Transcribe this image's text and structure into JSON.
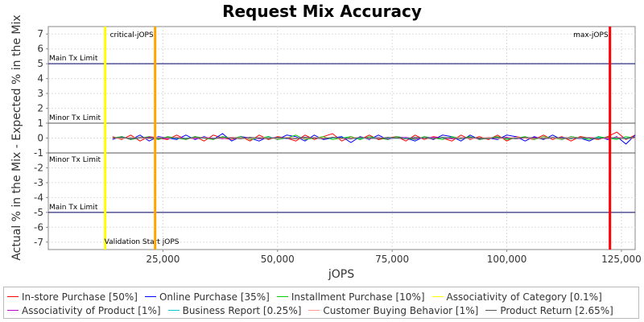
{
  "chart_data": {
    "type": "line",
    "title": "Request Mix Accuracy",
    "xlabel": "jOPS",
    "ylabel": "Actual % in the Mix - Expected % in the Mix",
    "xlim": [
      0,
      128000
    ],
    "ylim": [
      -7.5,
      7.5
    ],
    "x_ticks": [
      {
        "value": 25000,
        "label": "25,000"
      },
      {
        "value": 50000,
        "label": "50,000"
      },
      {
        "value": 75000,
        "label": "75,000"
      },
      {
        "value": 100000,
        "label": "100,000"
      },
      {
        "value": 125000,
        "label": "125,000"
      }
    ],
    "y_ticks": [
      {
        "value": 7,
        "label": "7"
      },
      {
        "value": 6,
        "label": "6"
      },
      {
        "value": 5,
        "label": "5"
      },
      {
        "value": 4,
        "label": "4"
      },
      {
        "value": 3,
        "label": "3"
      },
      {
        "value": 2,
        "label": "2"
      },
      {
        "value": 1,
        "label": "1"
      },
      {
        "value": 0,
        "label": "0"
      },
      {
        "value": -1,
        "label": "-1"
      },
      {
        "value": -2,
        "label": "-2"
      },
      {
        "value": -3,
        "label": "-3"
      },
      {
        "value": -4,
        "label": "-4"
      },
      {
        "value": -5,
        "label": "-5"
      },
      {
        "value": -6,
        "label": "-6"
      },
      {
        "value": -7,
        "label": "-7"
      }
    ],
    "grid": true,
    "legend_position": "bottom",
    "limit_lines": [
      {
        "label": "Main Tx Limit",
        "y": 5,
        "color": "#000066",
        "label_side": "above"
      },
      {
        "label": "Minor Tx Limit",
        "y": 1,
        "color": "#555555",
        "label_side": "above"
      },
      {
        "label": "Minor Tx Limit",
        "y": -1,
        "color": "#555555",
        "label_side": "below"
      },
      {
        "label": "Main Tx Limit",
        "y": -5,
        "color": "#000066",
        "label_side": "above"
      }
    ],
    "markers": [
      {
        "label": "Validation Start jOPS",
        "x": 12400,
        "color": "#ffff00",
        "label_pos": "bottom"
      },
      {
        "label": "critical-jOPS",
        "x": 23300,
        "color": "#ffa500",
        "label_pos": "top"
      },
      {
        "label": "max-jOPS",
        "x": 122500,
        "color": "#ff0000",
        "label_pos": "top"
      }
    ],
    "x": [
      14000,
      16000,
      18000,
      20000,
      22000,
      24000,
      26000,
      28000,
      30000,
      32000,
      34000,
      36000,
      38000,
      40000,
      42000,
      44000,
      46000,
      48000,
      50000,
      52000,
      54000,
      56000,
      58000,
      60000,
      62000,
      64000,
      66000,
      68000,
      70000,
      72000,
      74000,
      76000,
      78000,
      80000,
      82000,
      84000,
      86000,
      88000,
      90000,
      92000,
      94000,
      96000,
      98000,
      100000,
      102000,
      104000,
      106000,
      108000,
      110000,
      112000,
      114000,
      116000,
      118000,
      120000,
      122000,
      124000,
      126000,
      128000
    ],
    "series": [
      {
        "name": "In-store Purchase [50%]",
        "color": "#ff0000",
        "values": [
          0.1,
          -0.1,
          0.2,
          -0.2,
          0.1,
          0.0,
          -0.1,
          0.2,
          -0.1,
          0.1,
          -0.2,
          0.2,
          0.0,
          -0.1,
          0.1,
          -0.2,
          0.2,
          -0.1,
          0.1,
          0.0,
          -0.2,
          0.2,
          -0.1,
          0.1,
          0.3,
          -0.2,
          0.1,
          -0.1,
          0.2,
          -0.1,
          0.0,
          0.1,
          -0.2,
          0.2,
          -0.1,
          0.1,
          0.0,
          -0.2,
          0.2,
          -0.1,
          0.1,
          -0.1,
          0.2,
          -0.2,
          0.1,
          0.0,
          -0.1,
          0.2,
          -0.1,
          0.1,
          -0.2,
          0.1,
          0.0,
          -0.1,
          0.1,
          0.4,
          -0.1,
          0.2
        ]
      },
      {
        "name": "Online Purchase [35%]",
        "color": "#0000ff",
        "values": [
          -0.1,
          0.1,
          -0.1,
          0.2,
          -0.2,
          0.1,
          0.0,
          -0.1,
          0.2,
          -0.1,
          0.1,
          -0.1,
          0.3,
          -0.2,
          0.1,
          0.0,
          -0.2,
          0.1,
          -0.1,
          0.2,
          0.1,
          -0.2,
          0.2,
          -0.1,
          0.0,
          0.1,
          -0.3,
          0.1,
          -0.1,
          0.2,
          -0.1,
          0.1,
          0.0,
          -0.2,
          0.1,
          -0.1,
          0.2,
          0.1,
          -0.2,
          0.2,
          -0.1,
          0.0,
          -0.1,
          0.2,
          0.1,
          -0.2,
          0.1,
          -0.1,
          0.2,
          -0.1,
          0.1,
          0.0,
          -0.2,
          0.1,
          -0.1,
          0.1,
          -0.4,
          0.2
        ]
      },
      {
        "name": "Installment Purchase [10%]",
        "color": "#00cc00",
        "values": [
          0.0,
          0.1,
          -0.1,
          0.0,
          0.1,
          -0.1,
          0.1,
          0.0,
          -0.1,
          0.1,
          0.0,
          -0.1,
          0.1,
          0.0,
          0.1,
          -0.1,
          0.0,
          0.1,
          -0.1,
          0.0,
          0.2,
          -0.1,
          0.0,
          0.1,
          -0.1,
          0.0,
          0.1,
          -0.1,
          0.1,
          0.0,
          -0.1,
          0.1,
          0.0,
          -0.1,
          0.1,
          0.0,
          -0.1,
          0.1,
          0.0,
          0.1,
          -0.1,
          0.0,
          0.1,
          -0.1,
          0.0,
          0.1,
          -0.1,
          0.1,
          0.0,
          -0.1,
          0.1,
          0.0,
          -0.1,
          0.1,
          0.0,
          -0.1,
          0.1,
          0.0
        ]
      },
      {
        "name": "Associativity of Category [0.1%]",
        "color": "#ffff00",
        "values": [
          0.0,
          0.0,
          0.0,
          0.0,
          0.0,
          0.0,
          0.0,
          0.0,
          0.0,
          0.0,
          0.0,
          0.0,
          0.0,
          0.0,
          0.0,
          0.0,
          0.0,
          0.0,
          0.0,
          0.0,
          0.0,
          0.0,
          0.0,
          0.0,
          0.0,
          0.0,
          0.0,
          0.0,
          0.0,
          0.0,
          0.0,
          0.0,
          0.0,
          0.0,
          0.0,
          0.0,
          0.0,
          0.0,
          0.0,
          0.0,
          0.0,
          0.0,
          0.0,
          0.0,
          0.0,
          0.0,
          0.0,
          0.0,
          0.0,
          0.0,
          0.0,
          0.0,
          0.0,
          0.0,
          0.0,
          0.0,
          0.0,
          0.0
        ]
      },
      {
        "name": "Associativity of Product [1%]",
        "color": "#cc00cc",
        "values": [
          0.0,
          0.05,
          -0.05,
          0.0,
          0.05,
          0.0,
          -0.05,
          0.05,
          0.0,
          -0.05,
          0.05,
          0.0,
          -0.05,
          0.05,
          0.0,
          0.05,
          -0.05,
          0.0,
          0.05,
          -0.05,
          0.0,
          0.05,
          0.0,
          -0.05,
          0.05,
          0.0,
          -0.05,
          0.05,
          0.0,
          0.05,
          -0.05,
          0.0,
          0.05,
          -0.05,
          0.0,
          0.05,
          0.0,
          -0.05,
          0.05,
          0.0,
          -0.05,
          0.05,
          0.0,
          0.05,
          -0.05,
          0.0,
          0.05,
          -0.05,
          0.0,
          0.05,
          0.0,
          -0.05,
          0.05,
          0.0,
          -0.05,
          0.05,
          0.0,
          0.05
        ]
      },
      {
        "name": "Business Report [0.25%]",
        "color": "#00cccc",
        "values": [
          0.0,
          0.02,
          0.0,
          -0.02,
          0.0,
          0.02,
          0.0,
          -0.02,
          0.0,
          0.02,
          0.0,
          -0.02,
          0.0,
          0.02,
          0.0,
          -0.02,
          0.0,
          0.02,
          0.0,
          -0.02,
          0.0,
          0.02,
          0.0,
          -0.02,
          0.0,
          0.02,
          0.0,
          -0.02,
          0.0,
          0.02,
          0.0,
          -0.02,
          0.0,
          0.02,
          0.0,
          -0.02,
          0.0,
          0.02,
          0.0,
          -0.02,
          0.0,
          0.02,
          0.0,
          -0.02,
          0.0,
          0.02,
          0.0,
          -0.02,
          0.0,
          0.02,
          0.0,
          -0.02,
          0.0,
          0.02,
          0.0,
          -0.02,
          0.0,
          0.02
        ]
      },
      {
        "name": "Customer Buying Behavior [1%]",
        "color": "#ff9999",
        "values": [
          0.0,
          -0.05,
          0.05,
          0.0,
          -0.05,
          0.05,
          0.0,
          0.05,
          -0.05,
          0.0,
          0.05,
          -0.05,
          0.0,
          0.05,
          0.0,
          -0.05,
          0.05,
          0.0,
          -0.05,
          0.05,
          0.0,
          -0.05,
          0.05,
          0.0,
          0.05,
          -0.05,
          0.0,
          0.05,
          -0.05,
          0.0,
          0.05,
          0.0,
          -0.05,
          0.05,
          0.0,
          -0.05,
          0.05,
          0.0,
          0.05,
          -0.05,
          0.0,
          0.05,
          -0.05,
          0.0,
          0.05,
          0.0,
          -0.05,
          0.05,
          0.0,
          -0.05,
          0.05,
          0.0,
          0.05,
          -0.05,
          0.0,
          0.05,
          -0.05,
          0.0
        ]
      },
      {
        "name": "Product Return [2.65%]",
        "color": "#555555",
        "values": [
          0.0,
          0.05,
          -0.05,
          0.05,
          0.0,
          -0.05,
          0.05,
          0.0,
          -0.05,
          0.05,
          0.0,
          -0.05,
          0.05,
          0.0,
          -0.05,
          0.05,
          0.0,
          -0.05,
          0.05,
          0.0,
          -0.05,
          0.05,
          0.0,
          -0.05,
          0.05,
          0.0,
          -0.05,
          0.05,
          0.0,
          -0.05,
          0.05,
          0.0,
          -0.05,
          0.05,
          0.0,
          -0.05,
          0.05,
          0.0,
          -0.05,
          0.05,
          0.0,
          -0.05,
          0.05,
          0.0,
          -0.05,
          0.05,
          0.0,
          -0.05,
          0.05,
          0.0,
          -0.05,
          0.05,
          0.0,
          -0.05,
          0.05,
          0.0,
          -0.05,
          0.05
        ]
      }
    ]
  }
}
